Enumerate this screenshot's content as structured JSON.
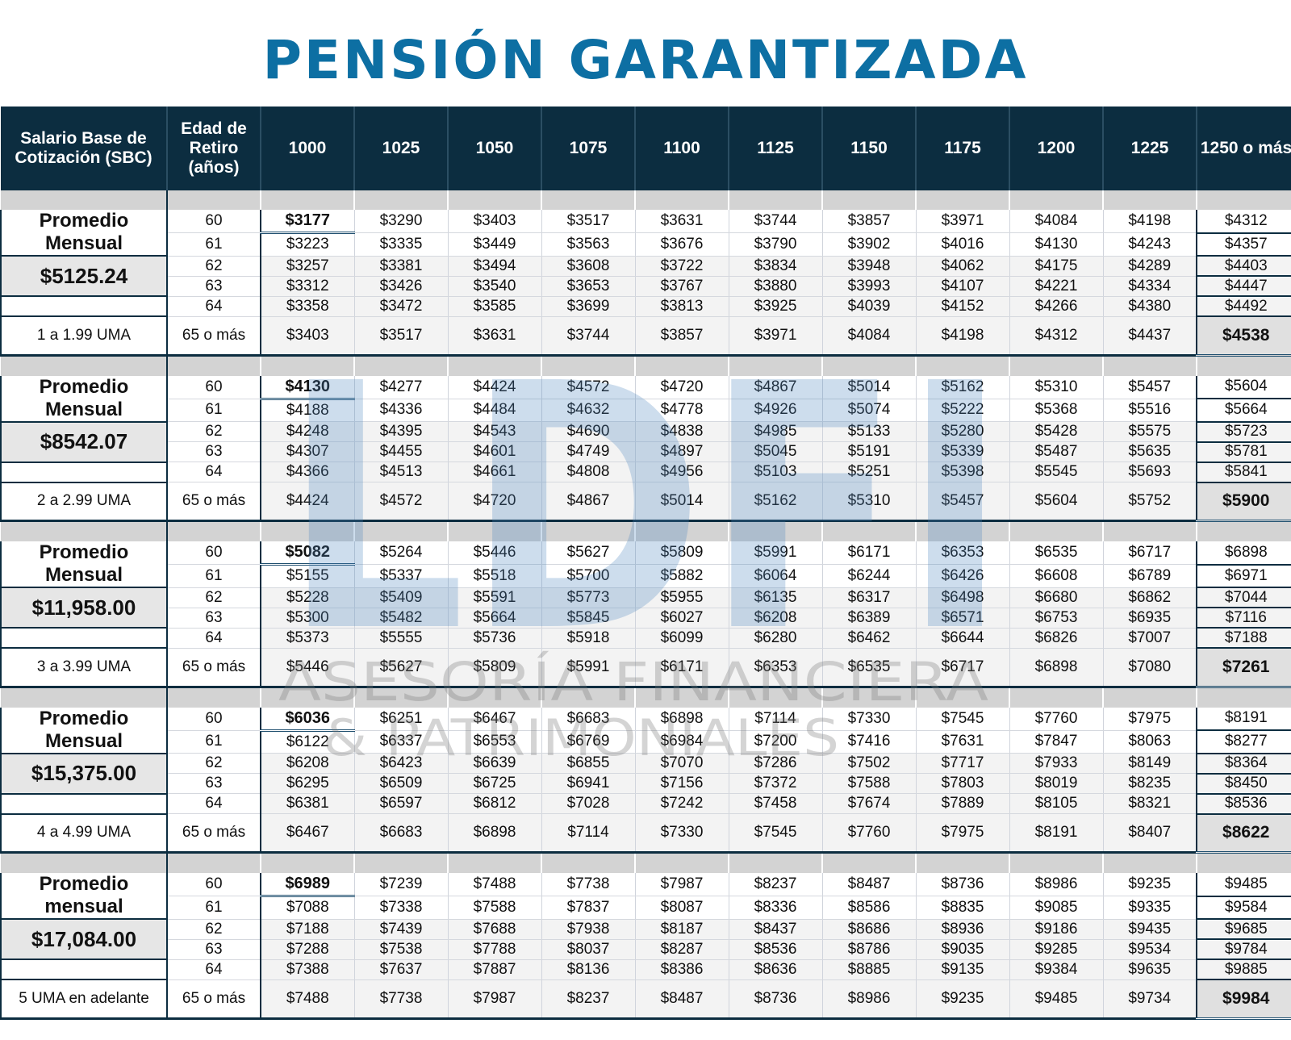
{
  "title": "PENSIÓN GARANTIZADA",
  "watermark": {
    "logo": "LDFI",
    "line1": "ASESORÍA FINANCIERA",
    "line2": "& PATRIMONIALES"
  },
  "header": {
    "col_salary": "Salario Base de Cotización (SBC)",
    "col_age": "Edad de Retiro (años)",
    "weeks": [
      "1000",
      "1025",
      "1050",
      "1075",
      "1100",
      "1125",
      "1150",
      "1175",
      "1200",
      "1225",
      "1250 o más"
    ]
  },
  "ages": [
    "60",
    "61",
    "62",
    "63",
    "64",
    "65 o más"
  ],
  "groups": [
    {
      "label": "Promedio Mensual",
      "average": "$5125.24",
      "uma": "1 a 1.99 UMA",
      "rows": [
        [
          "$3177",
          "$3290",
          "$3403",
          "$3517",
          "$3631",
          "$3744",
          "$3857",
          "$3971",
          "$4084",
          "$4198",
          "$4312"
        ],
        [
          "$3223",
          "$3335",
          "$3449",
          "$3563",
          "$3676",
          "$3790",
          "$3902",
          "$4016",
          "$4130",
          "$4243",
          "$4357"
        ],
        [
          "$3257",
          "$3381",
          "$3494",
          "$3608",
          "$3722",
          "$3834",
          "$3948",
          "$4062",
          "$4175",
          "$4289",
          "$4403"
        ],
        [
          "$3312",
          "$3426",
          "$3540",
          "$3653",
          "$3767",
          "$3880",
          "$3993",
          "$4107",
          "$4221",
          "$4334",
          "$4447"
        ],
        [
          "$3358",
          "$3472",
          "$3585",
          "$3699",
          "$3813",
          "$3925",
          "$4039",
          "$4152",
          "$4266",
          "$4380",
          "$4492"
        ],
        [
          "$3403",
          "$3517",
          "$3631",
          "$3744",
          "$3857",
          "$3971",
          "$4084",
          "$4198",
          "$4312",
          "$4437",
          "$4538"
        ]
      ]
    },
    {
      "label": "Promedio Mensual",
      "average": "$8542.07",
      "uma": "2 a 2.99 UMA",
      "rows": [
        [
          "$4130",
          "$4277",
          "$4424",
          "$4572",
          "$4720",
          "$4867",
          "$5014",
          "$5162",
          "$5310",
          "$5457",
          "$5604"
        ],
        [
          "$4188",
          "$4336",
          "$4484",
          "$4632",
          "$4778",
          "$4926",
          "$5074",
          "$5222",
          "$5368",
          "$5516",
          "$5664"
        ],
        [
          "$4248",
          "$4395",
          "$4543",
          "$4690",
          "$4838",
          "$4985",
          "$5133",
          "$5280",
          "$5428",
          "$5575",
          "$5723"
        ],
        [
          "$4307",
          "$4455",
          "$4601",
          "$4749",
          "$4897",
          "$5045",
          "$5191",
          "$5339",
          "$5487",
          "$5635",
          "$5781"
        ],
        [
          "$4366",
          "$4513",
          "$4661",
          "$4808",
          "$4956",
          "$5103",
          "$5251",
          "$5398",
          "$5545",
          "$5693",
          "$5841"
        ],
        [
          "$4424",
          "$4572",
          "$4720",
          "$4867",
          "$5014",
          "$5162",
          "$5310",
          "$5457",
          "$5604",
          "$5752",
          "$5900"
        ]
      ]
    },
    {
      "label": "Promedio Mensual",
      "average": "$11,958.00",
      "uma": "3 a 3.99 UMA",
      "rows": [
        [
          "$5082",
          "$5264",
          "$5446",
          "$5627",
          "$5809",
          "$5991",
          "$6171",
          "$6353",
          "$6535",
          "$6717",
          "$6898"
        ],
        [
          "$5155",
          "$5337",
          "$5518",
          "$5700",
          "$5882",
          "$6064",
          "$6244",
          "$6426",
          "$6608",
          "$6789",
          "$6971"
        ],
        [
          "$5228",
          "$5409",
          "$5591",
          "$5773",
          "$5955",
          "$6135",
          "$6317",
          "$6498",
          "$6680",
          "$6862",
          "$7044"
        ],
        [
          "$5300",
          "$5482",
          "$5664",
          "$5845",
          "$6027",
          "$6208",
          "$6389",
          "$6571",
          "$6753",
          "$6935",
          "$7116"
        ],
        [
          "$5373",
          "$5555",
          "$5736",
          "$5918",
          "$6099",
          "$6280",
          "$6462",
          "$6644",
          "$6826",
          "$7007",
          "$7188"
        ],
        [
          "$5446",
          "$5627",
          "$5809",
          "$5991",
          "$6171",
          "$6353",
          "$6535",
          "$6717",
          "$6898",
          "$7080",
          "$7261"
        ]
      ]
    },
    {
      "label": "Promedio Mensual",
      "average": "$15,375.00",
      "uma": "4 a 4.99 UMA",
      "rows": [
        [
          "$6036",
          "$6251",
          "$6467",
          "$6683",
          "$6898",
          "$7114",
          "$7330",
          "$7545",
          "$7760",
          "$7975",
          "$8191"
        ],
        [
          "$6122",
          "$6337",
          "$6553",
          "$6769",
          "$6984",
          "$7200",
          "$7416",
          "$7631",
          "$7847",
          "$8063",
          "$8277"
        ],
        [
          "$6208",
          "$6423",
          "$6639",
          "$6855",
          "$7070",
          "$7286",
          "$7502",
          "$7717",
          "$7933",
          "$8149",
          "$8364"
        ],
        [
          "$6295",
          "$6509",
          "$6725",
          "$6941",
          "$7156",
          "$7372",
          "$7588",
          "$7803",
          "$8019",
          "$8235",
          "$8450"
        ],
        [
          "$6381",
          "$6597",
          "$6812",
          "$7028",
          "$7242",
          "$7458",
          "$7674",
          "$7889",
          "$8105",
          "$8321",
          "$8536"
        ],
        [
          "$6467",
          "$6683",
          "$6898",
          "$7114",
          "$7330",
          "$7545",
          "$7760",
          "$7975",
          "$8191",
          "$8407",
          "$8622"
        ]
      ]
    },
    {
      "label": "Promedio mensual",
      "average": "$17,084.00",
      "uma": "5 UMA en adelante",
      "rows": [
        [
          "$6989",
          "$7239",
          "$7488",
          "$7738",
          "$7987",
          "$8237",
          "$8487",
          "$8736",
          "$8986",
          "$9235",
          "$9485"
        ],
        [
          "$7088",
          "$7338",
          "$7588",
          "$7837",
          "$8087",
          "$8336",
          "$8586",
          "$8835",
          "$9085",
          "$9335",
          "$9584"
        ],
        [
          "$7188",
          "$7439",
          "$7688",
          "$7938",
          "$8187",
          "$8437",
          "$8686",
          "$8936",
          "$9186",
          "$9435",
          "$9685"
        ],
        [
          "$7288",
          "$7538",
          "$7788",
          "$8037",
          "$8287",
          "$8536",
          "$8786",
          "$9035",
          "$9285",
          "$9534",
          "$9784"
        ],
        [
          "$7388",
          "$7637",
          "$7887",
          "$8136",
          "$8386",
          "$8636",
          "$8885",
          "$9135",
          "$9384",
          "$9635",
          "$9885"
        ],
        [
          "$7488",
          "$7738",
          "$7987",
          "$8237",
          "$8487",
          "$8736",
          "$8986",
          "$9235",
          "$9485",
          "$9734",
          "$9984"
        ]
      ]
    }
  ]
}
